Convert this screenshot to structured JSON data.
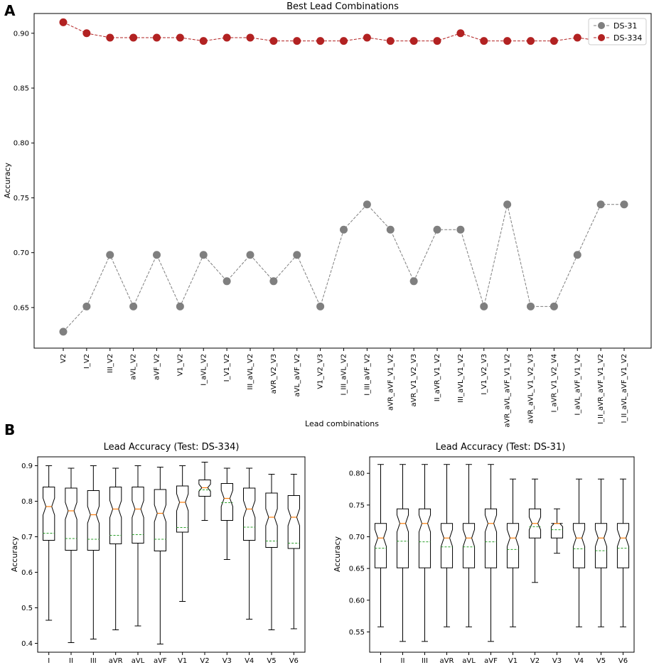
{
  "panel_labels": [
    "A",
    "B"
  ],
  "chart_data": [
    {
      "type": "line",
      "title": "Best Lead Combinations",
      "xlabel": "Lead combinations",
      "ylabel": "Accuracy",
      "ylim": [
        0.613,
        0.918
      ],
      "yticks": [
        "0.65",
        "0.70",
        "0.75",
        "0.80",
        "0.85",
        "0.90"
      ],
      "yticks_values": [
        0.65,
        0.7,
        0.75,
        0.8,
        0.85,
        0.9
      ],
      "legend_position": "top-right",
      "categories": [
        "V2",
        "I_V2",
        "III_V2",
        "aVL_V2",
        "aVF_V2",
        "V1_V2",
        "I_aVL_V2",
        "I_V1_V2",
        "III_aVL_V2",
        "aVR_V2_V3",
        "aVL_aVF_V2",
        "V1_V2_V3",
        "I_III_aVL_V2",
        "I_III_aVF_V2",
        "aVR_aVF_V1_V2",
        "aVR_V1_V2_V3",
        "II_aVR_V1_V2",
        "III_aVL_V1_V2",
        "I_V1_V2_V3",
        "aVR_aVL_aVF_V1_V2",
        "aVR_aVL_V1_V2_V3",
        "I_aVR_V1_V2_V4",
        "I_aVL_aVF_V1_V2",
        "I_II_aVR_aVF_V1_V2",
        "I_II_aVL_aVF_V1_V2"
      ],
      "series": [
        {
          "name": "DS-31",
          "color": "#7f7f7f",
          "values": [
            0.628,
            0.651,
            0.698,
            0.651,
            0.698,
            0.651,
            0.698,
            0.674,
            0.698,
            0.674,
            0.698,
            0.651,
            0.721,
            0.744,
            0.721,
            0.674,
            0.721,
            0.721,
            0.651,
            0.744,
            0.651,
            0.651,
            0.698,
            0.744,
            0.744
          ]
        },
        {
          "name": "DS-334",
          "color": "#b22222",
          "values": [
            0.91,
            0.9,
            0.896,
            0.896,
            0.896,
            0.896,
            0.893,
            0.896,
            0.896,
            0.893,
            0.893,
            0.893,
            0.893,
            0.896,
            0.893,
            0.893,
            0.893,
            0.9,
            0.893,
            0.893,
            0.893,
            0.893,
            0.896,
            0.893,
            0.893
          ]
        }
      ]
    },
    {
      "type": "box",
      "title": "Lead Accuracy (Test: DS-334)",
      "ylabel": "Accuracy",
      "ylim": [
        0.375,
        0.925
      ],
      "yticks": [
        "0.4",
        "0.5",
        "0.6",
        "0.7",
        "0.8",
        "0.9"
      ],
      "yticks_values": [
        0.4,
        0.5,
        0.6,
        0.7,
        0.8,
        0.9
      ],
      "categories": [
        "I",
        "II",
        "III",
        "aVR",
        "aVL",
        "aVF",
        "V1",
        "V2",
        "V3",
        "V4",
        "V5",
        "V6"
      ],
      "boxes": [
        {
          "min": 0.465,
          "q1": 0.69,
          "median": 0.785,
          "q3": 0.84,
          "max": 0.9,
          "mean": 0.71
        },
        {
          "min": 0.402,
          "q1": 0.662,
          "median": 0.773,
          "q3": 0.837,
          "max": 0.893,
          "mean": 0.695
        },
        {
          "min": 0.412,
          "q1": 0.662,
          "median": 0.762,
          "q3": 0.83,
          "max": 0.9,
          "mean": 0.693
        },
        {
          "min": 0.438,
          "q1": 0.68,
          "median": 0.778,
          "q3": 0.84,
          "max": 0.893,
          "mean": 0.704
        },
        {
          "min": 0.449,
          "q1": 0.682,
          "median": 0.778,
          "q3": 0.84,
          "max": 0.9,
          "mean": 0.706
        },
        {
          "min": 0.398,
          "q1": 0.66,
          "median": 0.766,
          "q3": 0.833,
          "max": 0.896,
          "mean": 0.693
        },
        {
          "min": 0.518,
          "q1": 0.713,
          "median": 0.797,
          "q3": 0.843,
          "max": 0.9,
          "mean": 0.726
        },
        {
          "min": 0.746,
          "q1": 0.814,
          "median": 0.838,
          "q3": 0.86,
          "max": 0.91,
          "mean": 0.832
        },
        {
          "min": 0.636,
          "q1": 0.746,
          "median": 0.808,
          "q3": 0.85,
          "max": 0.893,
          "mean": 0.796
        },
        {
          "min": 0.468,
          "q1": 0.69,
          "median": 0.778,
          "q3": 0.837,
          "max": 0.893,
          "mean": 0.727
        },
        {
          "min": 0.438,
          "q1": 0.67,
          "median": 0.755,
          "q3": 0.823,
          "max": 0.876,
          "mean": 0.688
        },
        {
          "min": 0.441,
          "q1": 0.667,
          "median": 0.755,
          "q3": 0.816,
          "max": 0.876,
          "mean": 0.682
        }
      ]
    },
    {
      "type": "box",
      "title": "Lead Accuracy (Test: DS-31)",
      "ylabel": "Accuracy",
      "ylim": [
        0.518,
        0.826
      ],
      "yticks": [
        "0.55",
        "0.60",
        "0.65",
        "0.70",
        "0.75",
        "0.80"
      ],
      "yticks_values": [
        0.55,
        0.6,
        0.65,
        0.7,
        0.75,
        0.8
      ],
      "categories": [
        "I",
        "II",
        "III",
        "aVR",
        "aVL",
        "aVF",
        "V1",
        "V2",
        "V3",
        "V4",
        "V5",
        "V6"
      ],
      "boxes": [
        {
          "min": 0.558,
          "q1": 0.651,
          "median": 0.698,
          "q3": 0.721,
          "max": 0.814,
          "mean": 0.682
        },
        {
          "min": 0.535,
          "q1": 0.651,
          "median": 0.721,
          "q3": 0.744,
          "max": 0.814,
          "mean": 0.693
        },
        {
          "min": 0.535,
          "q1": 0.651,
          "median": 0.721,
          "q3": 0.744,
          "max": 0.814,
          "mean": 0.692
        },
        {
          "min": 0.558,
          "q1": 0.651,
          "median": 0.698,
          "q3": 0.721,
          "max": 0.814,
          "mean": 0.684
        },
        {
          "min": 0.558,
          "q1": 0.651,
          "median": 0.698,
          "q3": 0.721,
          "max": 0.814,
          "mean": 0.684
        },
        {
          "min": 0.535,
          "q1": 0.651,
          "median": 0.721,
          "q3": 0.744,
          "max": 0.814,
          "mean": 0.692
        },
        {
          "min": 0.558,
          "q1": 0.651,
          "median": 0.698,
          "q3": 0.721,
          "max": 0.791,
          "mean": 0.68
        },
        {
          "min": 0.628,
          "q1": 0.698,
          "median": 0.721,
          "q3": 0.744,
          "max": 0.791,
          "mean": 0.716
        },
        {
          "min": 0.674,
          "q1": 0.698,
          "median": 0.721,
          "q3": 0.721,
          "max": 0.744,
          "mean": 0.711
        },
        {
          "min": 0.558,
          "q1": 0.651,
          "median": 0.698,
          "q3": 0.721,
          "max": 0.791,
          "mean": 0.681
        },
        {
          "min": 0.558,
          "q1": 0.651,
          "median": 0.698,
          "q3": 0.721,
          "max": 0.791,
          "mean": 0.678
        },
        {
          "min": 0.558,
          "q1": 0.651,
          "median": 0.698,
          "q3": 0.721,
          "max": 0.791,
          "mean": 0.682
        }
      ]
    }
  ]
}
